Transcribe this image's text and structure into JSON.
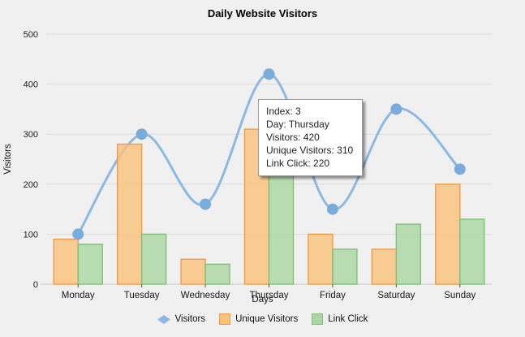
{
  "chart_data": {
    "type": "combo-line-bar",
    "title": "Daily Website Visitors",
    "xlabel": "Days",
    "ylabel": "Visitors",
    "ylim": [
      0,
      500
    ],
    "yticks": [
      0,
      100,
      200,
      300,
      400,
      500
    ],
    "grid": true,
    "legend_position": "bottom",
    "categories": [
      "Monday",
      "Tuesday",
      "Wednesday",
      "Thursday",
      "Friday",
      "Saturday",
      "Sunday"
    ],
    "series": [
      {
        "name": "Visitors",
        "type": "line",
        "marker": "diamond",
        "color": "#8CB9E4",
        "marker_color": "#79ACDB",
        "values": [
          100,
          300,
          160,
          420,
          150,
          350,
          230
        ]
      },
      {
        "name": "Unique Visitors",
        "type": "bar",
        "marker": "square",
        "fill": "#F9C27D",
        "border": "#F09C44",
        "values": [
          90,
          280,
          50,
          310,
          100,
          70,
          200
        ]
      },
      {
        "name": "Link Click",
        "type": "bar",
        "marker": "square",
        "fill": "#ABD6A3",
        "border": "#80C077",
        "values": [
          80,
          100,
          40,
          220,
          70,
          120,
          130
        ]
      }
    ]
  },
  "tooltip": {
    "lines": [
      "Index: 3",
      "Day: Thursday",
      "Visitors: 420",
      "Unique Visitors: 310",
      "Link Click: 220"
    ]
  },
  "colors": {
    "background": "#F0F0F0",
    "grid": "#DBDBDB",
    "axis_line": "#C6C6C6",
    "tick": "#555555",
    "text": "#1A1A1A",
    "tooltip_bg": "#FFFFFF",
    "tooltip_border": "#9B9B9B"
  }
}
